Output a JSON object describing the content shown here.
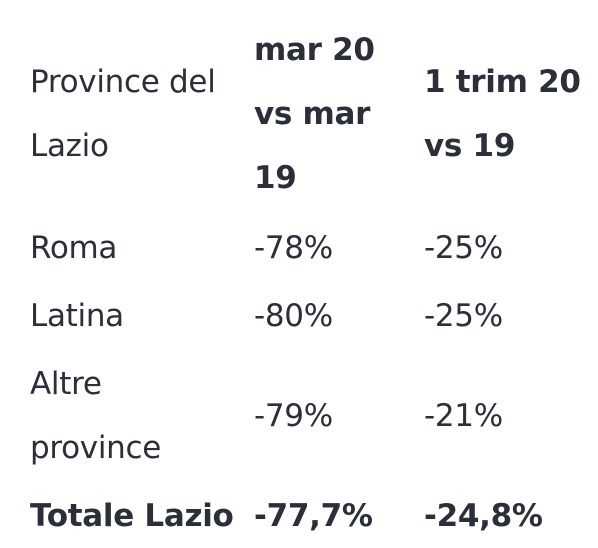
{
  "table": {
    "headers": {
      "province": [
        "Province del",
        "Lazio"
      ],
      "mar": [
        "mar 20",
        "vs mar",
        "19"
      ],
      "trim": [
        "1 trim 20",
        "vs 19"
      ]
    },
    "rows": [
      {
        "province": [
          "Roma"
        ],
        "mar": "-78%",
        "trim": "-25%"
      },
      {
        "province": [
          "Latina"
        ],
        "mar": "-80%",
        "trim": "-25%"
      },
      {
        "province": [
          "Altre",
          "province"
        ],
        "mar": "-79%",
        "trim": "-21%"
      }
    ],
    "total": {
      "province": "Totale Lazio",
      "mar": "-77,7%",
      "trim": "-24,8%"
    }
  }
}
